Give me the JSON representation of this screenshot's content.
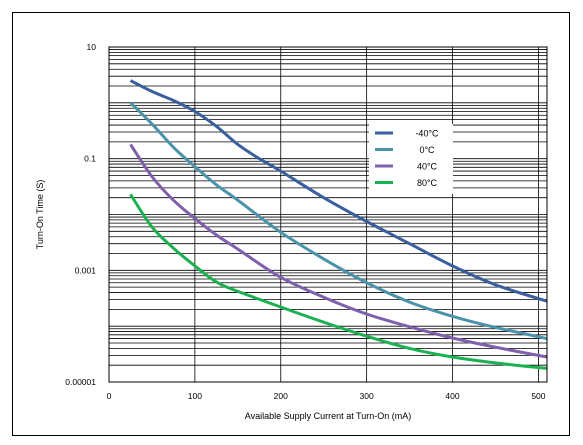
{
  "chart_data": {
    "type": "line",
    "title": "",
    "xlabel": "Available Supply Current at Turn-On (mA)",
    "ylabel": "Turn-On Time (S)",
    "xlim": [
      0,
      510
    ],
    "ylim": [
      1e-05,
      10
    ],
    "yscale": "log",
    "x_ticks": [
      0,
      100,
      200,
      300,
      400,
      500
    ],
    "y_ticks": [
      {
        "value": 10,
        "label": "10"
      },
      {
        "value": 0.1,
        "label": "0.1"
      },
      {
        "value": 0.001,
        "label": "0.001"
      },
      {
        "value": 1e-05,
        "label": "0.00001"
      }
    ],
    "grid": true,
    "legend": "right",
    "series": [
      {
        "name": "-40°C",
        "color": "#3a5f9e",
        "x": [
          25,
          50,
          75,
          100,
          125,
          150,
          175,
          200,
          250,
          300,
          350,
          400,
          450,
          510
        ],
        "y": [
          2.5,
          1.6,
          1.1,
          0.7,
          0.38,
          0.18,
          0.1,
          0.06,
          0.02,
          0.0075,
          0.003,
          0.0012,
          0.00055,
          0.00028
        ]
      },
      {
        "name": "0°C",
        "color": "#4a93ab",
        "x": [
          25,
          50,
          75,
          100,
          125,
          150,
          200,
          250,
          300,
          350,
          400,
          450,
          510
        ],
        "y": [
          1.0,
          0.42,
          0.16,
          0.072,
          0.034,
          0.018,
          0.0048,
          0.0016,
          0.0006,
          0.00027,
          0.00015,
          9.5e-05,
          6e-05
        ]
      },
      {
        "name": "40°C",
        "color": "#7f60ad",
        "x": [
          25,
          50,
          75,
          100,
          125,
          150,
          200,
          250,
          300,
          350,
          400,
          450,
          510
        ],
        "y": [
          0.18,
          0.048,
          0.018,
          0.0085,
          0.0043,
          0.0024,
          0.00075,
          0.00033,
          0.000165,
          9.75e-05,
          6.15e-05,
          4.2e-05,
          2.8e-05
        ]
      },
      {
        "name": "80°C",
        "color": "#1bb151",
        "x": [
          25,
          50,
          75,
          100,
          125,
          150,
          200,
          250,
          300,
          350,
          400,
          450,
          510
        ],
        "y": [
          0.023,
          0.006,
          0.0025,
          0.0012,
          0.00062,
          0.00042,
          0.00022,
          0.000118,
          6.6e-05,
          4e-05,
          2.8e-05,
          2.2e-05,
          1.75e-05
        ]
      }
    ]
  }
}
